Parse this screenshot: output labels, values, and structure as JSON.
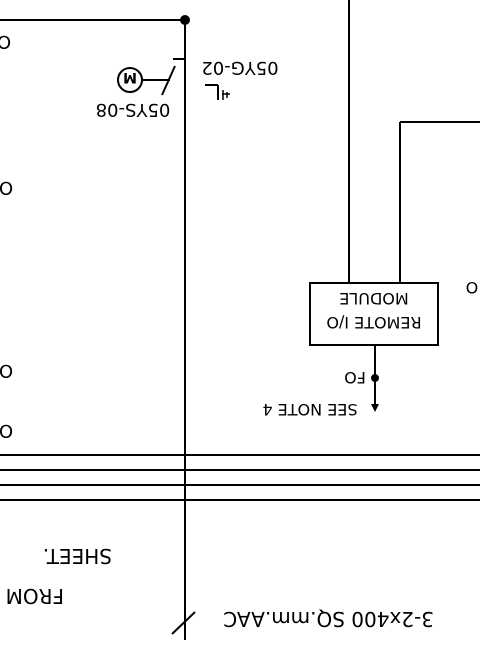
{
  "labels": {
    "switch_top": "05YG-02",
    "switch_bottom": "05YS-08",
    "motor_symbol": "M",
    "remote_line1": "REMOTE I/O",
    "remote_line2": "MODULE",
    "fo": "FO",
    "see_note": "SEE NOTE 4",
    "from_line1": "FROM",
    "from_line2": "SHEET.",
    "cable": "3-2x400 SQ.mm.AAC",
    "fo_right": "O"
  },
  "edge_labels": [
    "O",
    "O",
    "O",
    "O"
  ]
}
